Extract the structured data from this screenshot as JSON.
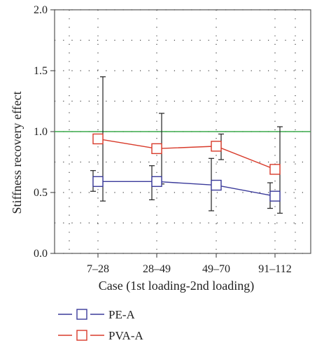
{
  "chart_data": {
    "type": "line",
    "xlabel": "Case (1st loading-2nd loading)",
    "ylabel": "Stiffness recovery effect",
    "categories": [
      "7–28",
      "28–49",
      "49–70",
      "91–112"
    ],
    "ylim": [
      0.0,
      2.0
    ],
    "yticks": [
      "0.0",
      "0.5",
      "1.0",
      "1.5",
      "2.0"
    ],
    "grid": true,
    "reference_line": {
      "y": 1.0,
      "color": "#3aa84a"
    },
    "legend_position": "bottom-left",
    "series": [
      {
        "name": "PE-A",
        "color": "#3a3a9a",
        "marker": "open-square",
        "values": [
          0.59,
          0.59,
          0.56,
          0.47
        ],
        "error_low": [
          0.51,
          0.44,
          0.35,
          0.37
        ],
        "error_high": [
          0.68,
          0.72,
          0.78,
          0.58
        ]
      },
      {
        "name": "PVA-A",
        "color": "#d83a2a",
        "marker": "open-square",
        "values": [
          0.94,
          0.86,
          0.88,
          0.69
        ],
        "error_low": [
          0.43,
          0.57,
          0.77,
          0.33
        ],
        "error_high": [
          1.45,
          1.15,
          0.98,
          1.04
        ]
      }
    ]
  }
}
